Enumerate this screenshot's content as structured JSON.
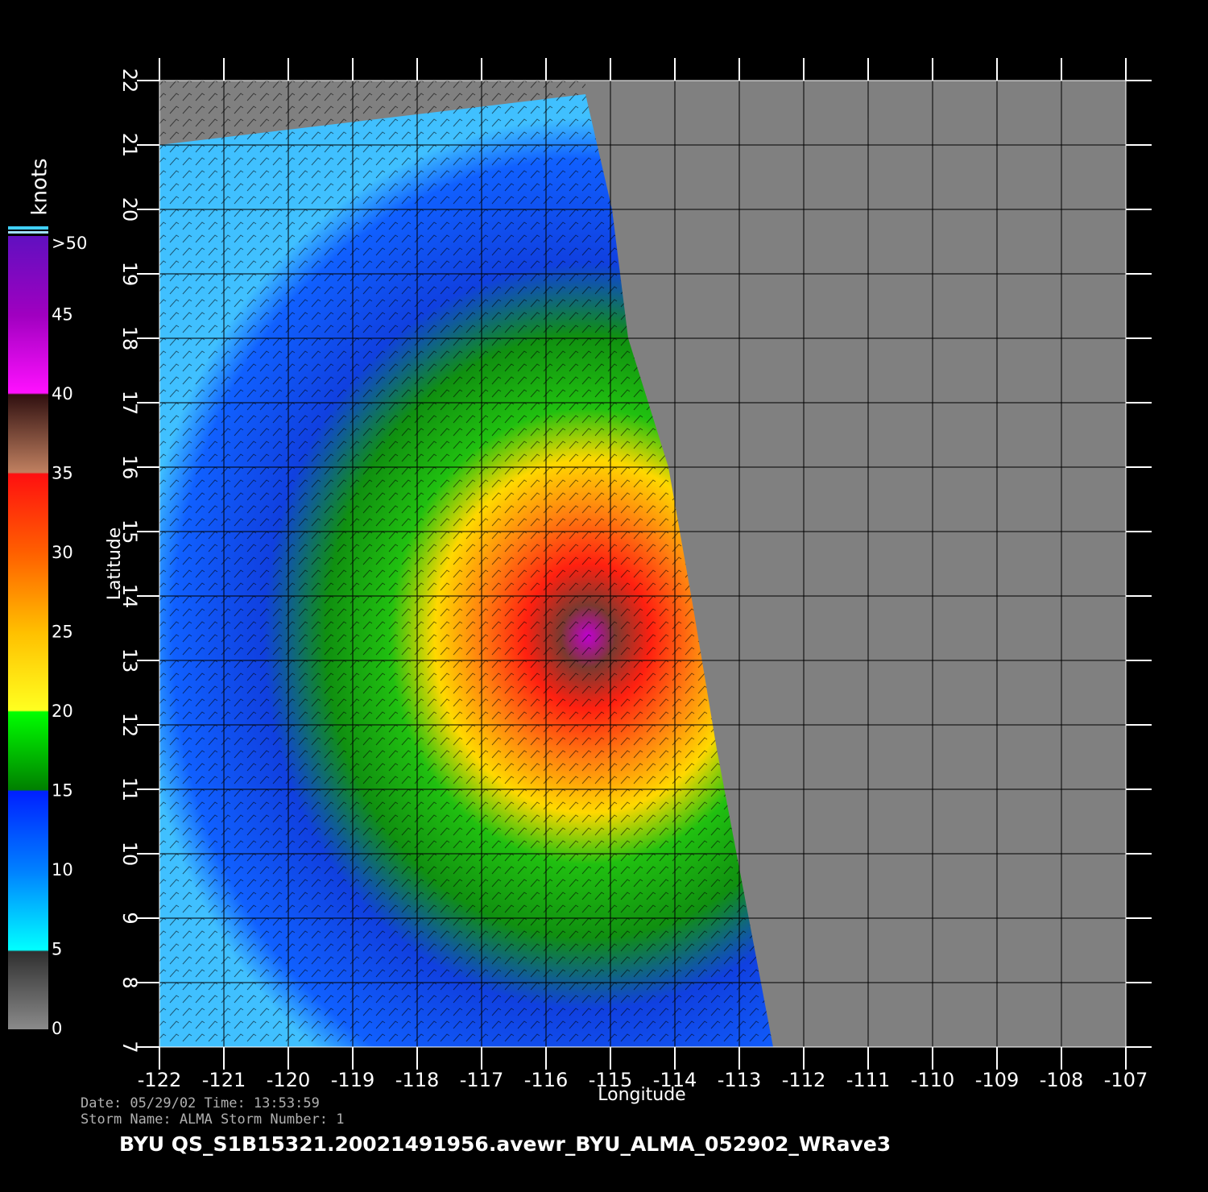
{
  "chart_data": {
    "type": "map",
    "title": "BYU  QS_S1B15321.20021491956.avewr_BYU_ALMA_052902_WRave3",
    "info_lines": [
      "Date: 05/29/02   Time: 13:53:59",
      "Storm  Name: ALMA   Storm  Number: 1"
    ],
    "x_label": "Longitude",
    "y_label": "Latitude",
    "xlim": [
      -122,
      -107
    ],
    "ylim": [
      7,
      22
    ],
    "xticks": [
      -122,
      -121,
      -120,
      -119,
      -118,
      -117,
      -116,
      -115,
      -114,
      -113,
      -112,
      -111,
      -110,
      -109,
      -108,
      -107
    ],
    "yticks": [
      7,
      8,
      9,
      10,
      11,
      12,
      13,
      14,
      15,
      16,
      17,
      18,
      19,
      20,
      21,
      22
    ],
    "grid": true,
    "colorbar": {
      "label": "knots",
      "lim": [
        0,
        50
      ],
      "ticks": [
        0,
        5,
        10,
        15,
        20,
        25,
        30,
        35,
        40,
        45,
        {
          "value": 50,
          "label": ">50"
        }
      ]
    }
  }
}
